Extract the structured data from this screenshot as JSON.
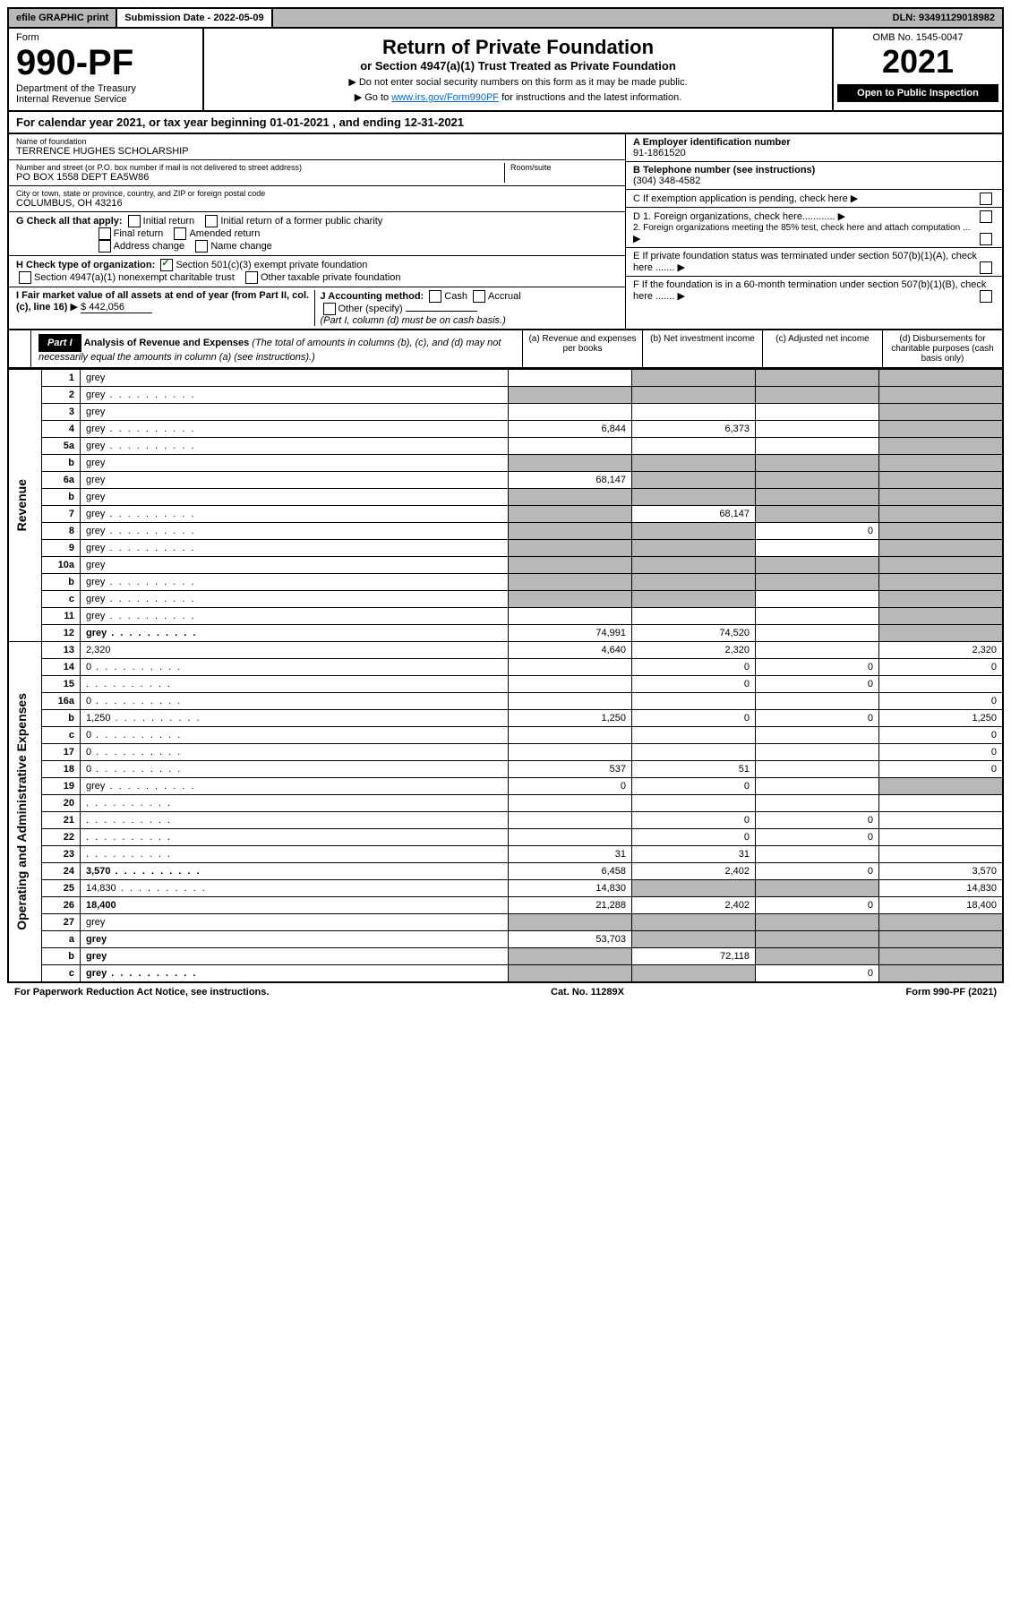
{
  "topbar": {
    "efile": "efile GRAPHIC print",
    "submission": "Submission Date - 2022-05-09",
    "dln": "DLN: 93491129018982"
  },
  "header": {
    "form_label": "Form",
    "form_num": "990-PF",
    "dept": "Department of the Treasury",
    "irs": "Internal Revenue Service",
    "title": "Return of Private Foundation",
    "subtitle": "or Section 4947(a)(1) Trust Treated as Private Foundation",
    "note1": "▶ Do not enter social security numbers on this form as it may be made public.",
    "note2_pre": "▶ Go to ",
    "note2_link": "www.irs.gov/Form990PF",
    "note2_post": " for instructions and the latest information.",
    "omb": "OMB No. 1545-0047",
    "year": "2021",
    "inspection": "Open to Public Inspection"
  },
  "calendar": {
    "text_pre": "For calendar year 2021, or tax year beginning ",
    "begin": "01-01-2021",
    "text_mid": " , and ending ",
    "end": "12-31-2021"
  },
  "org": {
    "name_label": "Name of foundation",
    "name": "TERRENCE HUGHES SCHOLARSHIP",
    "addr_label": "Number and street (or P.O. box number if mail is not delivered to street address)",
    "room_label": "Room/suite",
    "addr": "PO BOX 1558 DEPT EA5W86",
    "city_label": "City or town, state or province, country, and ZIP or foreign postal code",
    "city": "COLUMBUS, OH  43216"
  },
  "right": {
    "a_label": "A Employer identification number",
    "a_val": "91-1861520",
    "b_label": "B Telephone number (see instructions)",
    "b_val": "(304) 348-4582",
    "c_label": "C If exemption application is pending, check here",
    "d1": "D 1. Foreign organizations, check here............",
    "d2": "2. Foreign organizations meeting the 85% test, check here and attach computation ...",
    "e": "E  If private foundation status was terminated under section 507(b)(1)(A), check here .......",
    "f": "F  If the foundation is in a 60-month termination under section 507(b)(1)(B), check here ......."
  },
  "g": {
    "label": "G Check all that apply:",
    "opts": [
      "Initial return",
      "Final return",
      "Address change",
      "Initial return of a former public charity",
      "Amended return",
      "Name change"
    ]
  },
  "h": {
    "label": "H Check type of organization:",
    "o1": "Section 501(c)(3) exempt private foundation",
    "o2": "Section 4947(a)(1) nonexempt charitable trust",
    "o3": "Other taxable private foundation"
  },
  "i": {
    "label": "I Fair market value of all assets at end of year (from Part II, col. (c), line 16)",
    "val": "$  442,056"
  },
  "j": {
    "label": "J Accounting method:",
    "cash": "Cash",
    "accrual": "Accrual",
    "other": "Other (specify)",
    "note": "(Part I, column (d) must be on cash basis.)"
  },
  "part1": {
    "label": "Part I",
    "title": "Analysis of Revenue and Expenses",
    "note": "(The total of amounts in columns (b), (c), and (d) may not necessarily equal the amounts in column (a) (see instructions).)",
    "cols": {
      "a": "(a)   Revenue and expenses per books",
      "b": "(b)   Net investment income",
      "c": "(c)   Adjusted net income",
      "d": "(d)   Disbursements for charitable purposes (cash basis only)"
    }
  },
  "revenue_label": "Revenue",
  "expenses_label": "Operating and Administrative Expenses",
  "rows": [
    {
      "n": "1",
      "d": "grey",
      "a": "",
      "b": "grey",
      "c": "grey"
    },
    {
      "n": "2",
      "d": "grey",
      "a": "grey",
      "b": "grey",
      "c": "grey",
      "dots": true
    },
    {
      "n": "3",
      "d": "grey",
      "a": "",
      "b": "",
      "c": ""
    },
    {
      "n": "4",
      "d": "grey",
      "a": "6,844",
      "b": "6,373",
      "c": "",
      "dots": true
    },
    {
      "n": "5a",
      "d": "grey",
      "a": "",
      "b": "",
      "c": "",
      "dots": true
    },
    {
      "n": "b",
      "d": "grey",
      "a": "grey",
      "b": "grey",
      "c": "grey"
    },
    {
      "n": "6a",
      "d": "grey",
      "a": "68,147",
      "b": "grey",
      "c": "grey"
    },
    {
      "n": "b",
      "d": "grey",
      "a": "grey",
      "b": "grey",
      "c": "grey"
    },
    {
      "n": "7",
      "d": "grey",
      "a": "grey",
      "b": "68,147",
      "c": "grey",
      "dots": true
    },
    {
      "n": "8",
      "d": "grey",
      "a": "grey",
      "b": "grey",
      "c": "0",
      "dots": true
    },
    {
      "n": "9",
      "d": "grey",
      "a": "grey",
      "b": "grey",
      "c": "",
      "dots": true
    },
    {
      "n": "10a",
      "d": "grey",
      "a": "grey",
      "b": "grey",
      "c": "grey"
    },
    {
      "n": "b",
      "d": "grey",
      "a": "grey",
      "b": "grey",
      "c": "grey",
      "dots": true
    },
    {
      "n": "c",
      "d": "grey",
      "a": "grey",
      "b": "grey",
      "c": "",
      "dots": true
    },
    {
      "n": "11",
      "d": "grey",
      "a": "",
      "b": "",
      "c": "",
      "dots": true
    },
    {
      "n": "12",
      "d": "grey",
      "a": "74,991",
      "b": "74,520",
      "c": "",
      "bold": true,
      "dots": true
    }
  ],
  "exp_rows": [
    {
      "n": "13",
      "d": "2,320",
      "a": "4,640",
      "b": "2,320",
      "c": ""
    },
    {
      "n": "14",
      "d": "0",
      "a": "",
      "b": "0",
      "c": "0",
      "dots": true
    },
    {
      "n": "15",
      "d": "",
      "a": "",
      "b": "0",
      "c": "0",
      "dots": true
    },
    {
      "n": "16a",
      "d": "0",
      "a": "",
      "b": "",
      "c": "",
      "dots": true
    },
    {
      "n": "b",
      "d": "1,250",
      "a": "1,250",
      "b": "0",
      "c": "0",
      "dots": true
    },
    {
      "n": "c",
      "d": "0",
      "a": "",
      "b": "",
      "c": "",
      "dots": true
    },
    {
      "n": "17",
      "d": "0",
      "a": "",
      "b": "",
      "c": "",
      "dots": true
    },
    {
      "n": "18",
      "d": "0",
      "a": "537",
      "b": "51",
      "c": "",
      "dots": true
    },
    {
      "n": "19",
      "d": "grey",
      "a": "0",
      "b": "0",
      "c": "",
      "dots": true
    },
    {
      "n": "20",
      "d": "",
      "a": "",
      "b": "",
      "c": "",
      "dots": true
    },
    {
      "n": "21",
      "d": "",
      "a": "",
      "b": "0",
      "c": "0",
      "dots": true
    },
    {
      "n": "22",
      "d": "",
      "a": "",
      "b": "0",
      "c": "0",
      "dots": true
    },
    {
      "n": "23",
      "d": "",
      "a": "31",
      "b": "31",
      "c": "",
      "dots": true
    },
    {
      "n": "24",
      "d": "3,570",
      "a": "6,458",
      "b": "2,402",
      "c": "0",
      "bold": true,
      "dots": true
    },
    {
      "n": "25",
      "d": "14,830",
      "a": "14,830",
      "b": "grey",
      "c": "grey",
      "dots": true
    },
    {
      "n": "26",
      "d": "18,400",
      "a": "21,288",
      "b": "2,402",
      "c": "0",
      "bold": true
    },
    {
      "n": "27",
      "d": "grey",
      "a": "grey",
      "b": "grey",
      "c": "grey"
    },
    {
      "n": "a",
      "d": "grey",
      "a": "53,703",
      "b": "grey",
      "c": "grey",
      "bold": true
    },
    {
      "n": "b",
      "d": "grey",
      "a": "grey",
      "b": "72,118",
      "c": "grey",
      "bold": true
    },
    {
      "n": "c",
      "d": "grey",
      "a": "grey",
      "b": "grey",
      "c": "0",
      "bold": true,
      "dots": true
    }
  ],
  "footer": {
    "left": "For Paperwork Reduction Act Notice, see instructions.",
    "mid": "Cat. No. 11289X",
    "right": "Form 990-PF (2021)"
  }
}
